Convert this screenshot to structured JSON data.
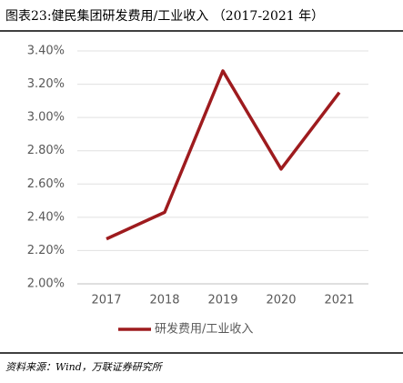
{
  "chart_data": {
    "type": "line",
    "title": "图表23:健民集团研发费用/工业收入 （2017-2021 年）",
    "categories": [
      "2017",
      "2018",
      "2019",
      "2020",
      "2021"
    ],
    "series": [
      {
        "name": "研发费用/工业收入",
        "color": "#9e1b1e",
        "values": [
          2.27,
          2.43,
          3.28,
          2.69,
          3.15
        ]
      }
    ],
    "ylim": [
      2.0,
      3.4
    ],
    "yticks": [
      {
        "value": 2.0,
        "label": "2.00%"
      },
      {
        "value": 2.2,
        "label": "2.20%"
      },
      {
        "value": 2.4,
        "label": "2.40%"
      },
      {
        "value": 2.6,
        "label": "2.60%"
      },
      {
        "value": 2.8,
        "label": "2.80%"
      },
      {
        "value": 3.0,
        "label": "3.00%"
      },
      {
        "value": 3.2,
        "label": "3.20%"
      },
      {
        "value": 3.4,
        "label": "3.40%"
      }
    ],
    "grid": true,
    "legend": "bottom",
    "source": "资料来源：Wind，万联证券研究所"
  }
}
